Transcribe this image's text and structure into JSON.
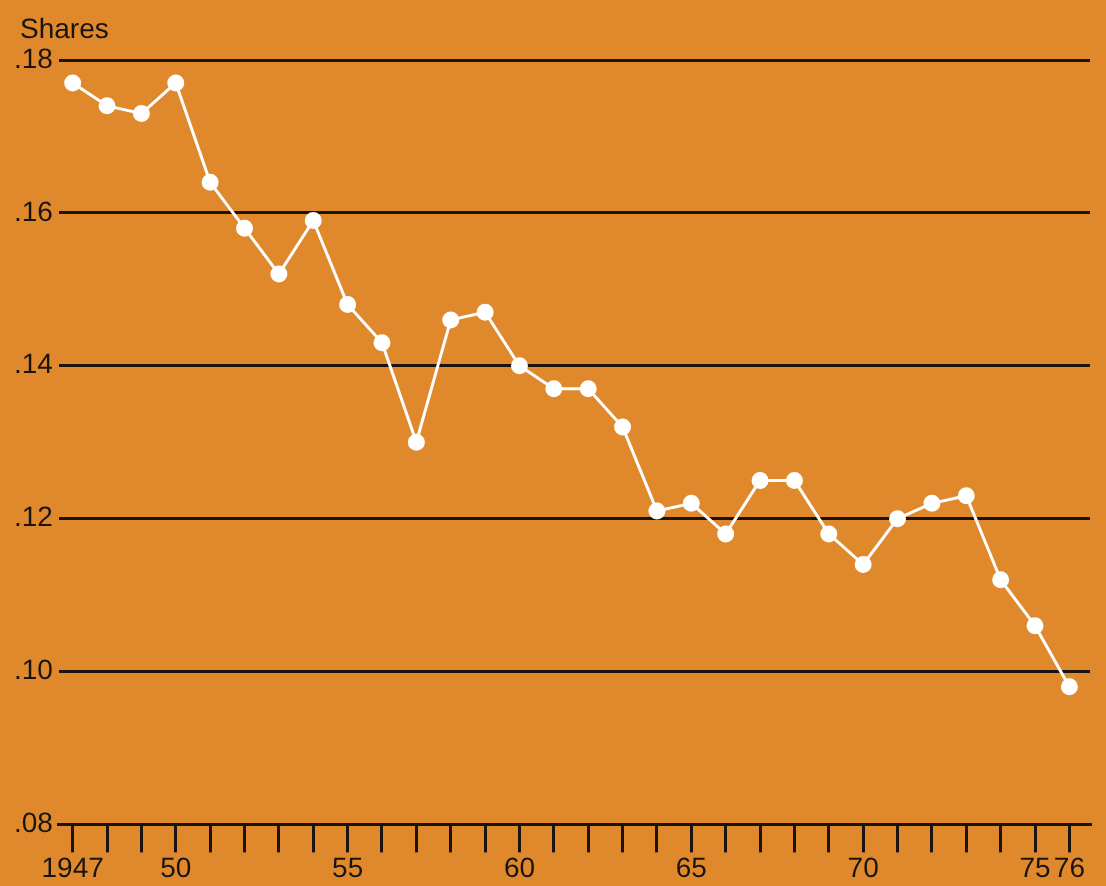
{
  "chart_data": {
    "type": "line",
    "ylabel": "Shares",
    "x": [
      1947,
      1948,
      1949,
      1950,
      1951,
      1952,
      1953,
      1954,
      1955,
      1956,
      1957,
      1958,
      1959,
      1960,
      1961,
      1962,
      1963,
      1964,
      1965,
      1966,
      1967,
      1968,
      1969,
      1970,
      1971,
      1972,
      1973,
      1974,
      1975,
      1976
    ],
    "series": [
      {
        "color": "#ffffff",
        "values": [
          0.177,
          0.174,
          0.173,
          0.177,
          0.164,
          0.158,
          0.152,
          0.159,
          0.148,
          0.143,
          0.13,
          0.146,
          0.147,
          0.14,
          0.137,
          0.137,
          0.132,
          0.121,
          0.122,
          0.118,
          0.125,
          0.125,
          0.118,
          0.114,
          0.12,
          0.122,
          0.123,
          0.112,
          0.106,
          0.098
        ]
      }
    ],
    "xlim": [
      1946.6,
      1976.6
    ],
    "xticks": [
      {
        "value": 1947,
        "label": "1947"
      },
      {
        "value": 1948,
        "label": null
      },
      {
        "value": 1949,
        "label": null
      },
      {
        "value": 1950,
        "label": "50"
      },
      {
        "value": 1951,
        "label": null
      },
      {
        "value": 1952,
        "label": null
      },
      {
        "value": 1953,
        "label": null
      },
      {
        "value": 1954,
        "label": null
      },
      {
        "value": 1955,
        "label": "55"
      },
      {
        "value": 1956,
        "label": null
      },
      {
        "value": 1957,
        "label": null
      },
      {
        "value": 1958,
        "label": null
      },
      {
        "value": 1959,
        "label": null
      },
      {
        "value": 1960,
        "label": "60"
      },
      {
        "value": 1961,
        "label": null
      },
      {
        "value": 1962,
        "label": null
      },
      {
        "value": 1963,
        "label": null
      },
      {
        "value": 1964,
        "label": null
      },
      {
        "value": 1965,
        "label": "65"
      },
      {
        "value": 1966,
        "label": null
      },
      {
        "value": 1967,
        "label": null
      },
      {
        "value": 1968,
        "label": null
      },
      {
        "value": 1969,
        "label": null
      },
      {
        "value": 1970,
        "label": "70"
      },
      {
        "value": 1971,
        "label": null
      },
      {
        "value": 1972,
        "label": null
      },
      {
        "value": 1973,
        "label": null
      },
      {
        "value": 1974,
        "label": null
      },
      {
        "value": 1975,
        "label": "75"
      },
      {
        "value": 1976,
        "label": "76"
      }
    ],
    "ylim": [
      0.08,
      0.18
    ],
    "yticks": [
      {
        "value": 0.08,
        "label": ".08"
      },
      {
        "value": 0.1,
        "label": ".10"
      },
      {
        "value": 0.12,
        "label": ".12"
      },
      {
        "value": 0.14,
        "label": ".14"
      },
      {
        "value": 0.16,
        "label": ".16"
      },
      {
        "value": 0.18,
        "label": ".18"
      }
    ],
    "grid": "y",
    "marker": "circle",
    "line_style": "solid",
    "legend": false
  }
}
